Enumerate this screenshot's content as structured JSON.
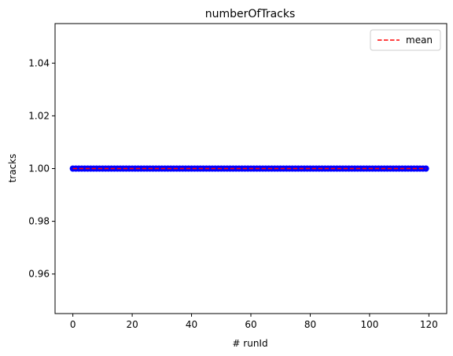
{
  "chart_data": {
    "type": "scatter",
    "title": "numberOfTracks",
    "xlabel": "# runId",
    "ylabel": "tracks",
    "xlim": [
      -6,
      126
    ],
    "ylim": [
      0.945,
      1.055
    ],
    "xticks": [
      0,
      20,
      40,
      60,
      80,
      100,
      120
    ],
    "yticks": [
      0.96,
      0.98,
      1.0,
      1.02,
      1.04
    ],
    "ytick_labels": [
      "0.96",
      "0.98",
      "1.00",
      "1.02",
      "1.04"
    ],
    "grid": false,
    "legend_position": "top-right",
    "series": [
      {
        "kind": "points",
        "color": "#0000ff",
        "x_start": 0,
        "x_end": 119,
        "x_step": 1,
        "y": 1.0
      },
      {
        "name": "mean",
        "kind": "dashed-line",
        "color": "#ff0000",
        "x": [
          0,
          119
        ],
        "y": [
          1.0,
          1.0
        ]
      }
    ]
  }
}
